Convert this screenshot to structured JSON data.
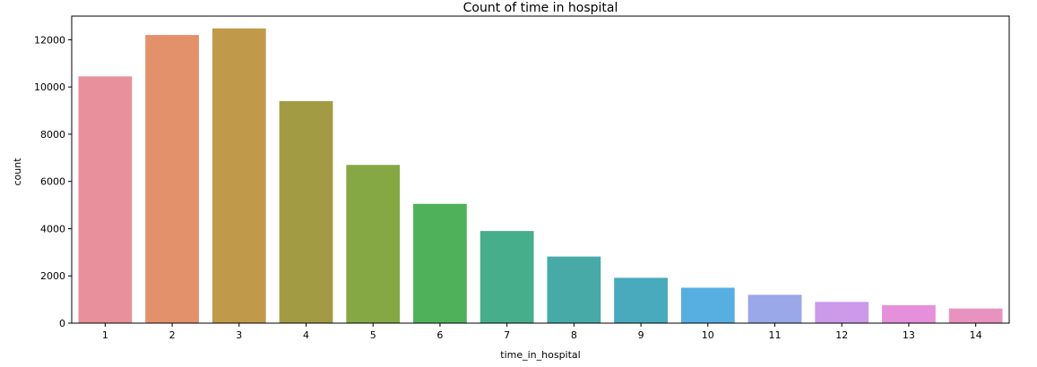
{
  "chart_data": {
    "type": "bar",
    "title": "Count of time in hospital",
    "xlabel": "time_in_hospital",
    "ylabel": "count",
    "categories": [
      "1",
      "2",
      "3",
      "4",
      "5",
      "6",
      "7",
      "8",
      "9",
      "10",
      "11",
      "12",
      "13",
      "14"
    ],
    "values": [
      10450,
      12200,
      12480,
      9400,
      6700,
      5050,
      3900,
      2820,
      1920,
      1500,
      1200,
      900,
      760,
      620
    ],
    "ylim": [
      0,
      13000
    ],
    "yticks": [
      0,
      2000,
      4000,
      6000,
      8000,
      10000,
      12000
    ],
    "grid": false,
    "colors": [
      "#e8919c",
      "#e2916a",
      "#c09a4a",
      "#a29b43",
      "#85a845",
      "#4fb15a",
      "#46ae8b",
      "#48aaa7",
      "#49a9bd",
      "#57aee0",
      "#9aa7e8",
      "#cc9ae8",
      "#e690db",
      "#e892c0"
    ]
  }
}
